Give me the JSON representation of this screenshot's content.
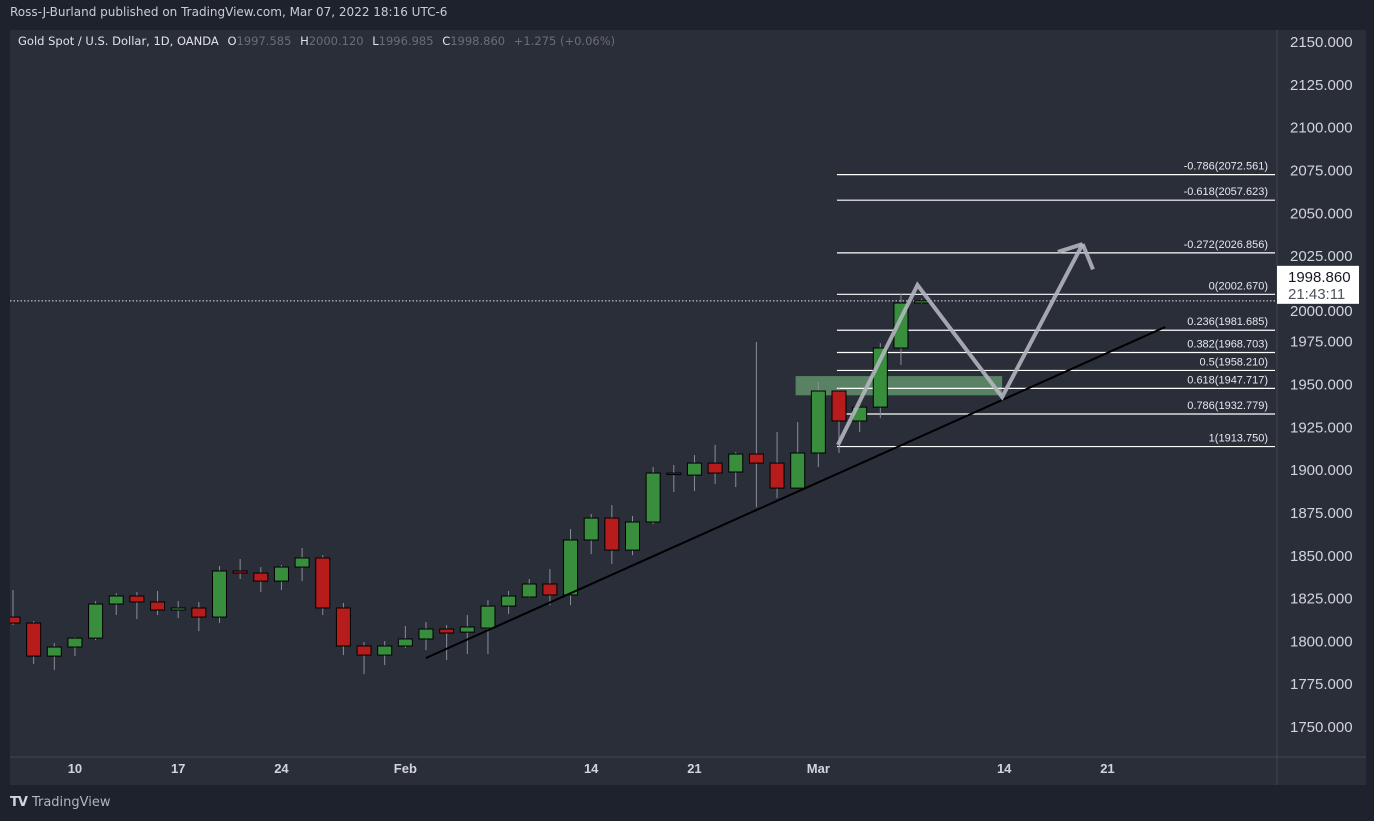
{
  "header": {
    "published": "Ross-J-Burland published on TradingView.com, Mar 07, 2022 18:16 UTC-6",
    "symbol": "Gold Spot / U.S. Dollar, 1D, OANDA",
    "o_label": "O",
    "o": "1997.585",
    "h_label": "H",
    "h": "2000.120",
    "l_label": "L",
    "l": "1996.985",
    "c_label": "C",
    "c": "1998.860",
    "change": "+1.275 (+0.06%)"
  },
  "last_price": {
    "price": "1998.860",
    "countdown": "21:43:11",
    "value": 1998.86
  },
  "footer": {
    "brand": "TradingView",
    "logo_text": "TV"
  },
  "colors": {
    "up": "#388e3c",
    "down": "#b71c1c",
    "bg": "#2a2e39",
    "text": "#d1d4dc"
  },
  "chart_data": {
    "type": "candlestick",
    "title": "Gold Spot / U.S. Dollar, 1D, OANDA",
    "ylim": [
      1735,
      2160
    ],
    "price_ticks": [
      "2150.000",
      "2125.000",
      "2100.000",
      "2075.000",
      "2050.000",
      "2025.000",
      "2000.000",
      "1975.000",
      "1950.000",
      "1925.000",
      "1900.000",
      "1875.000",
      "1850.000",
      "1825.000",
      "1800.000",
      "1775.000",
      "1750.000"
    ],
    "time_ticks": [
      {
        "label": "10",
        "index": 3
      },
      {
        "label": "17",
        "index": 8
      },
      {
        "label": "24",
        "index": 13
      },
      {
        "label": "Feb",
        "index": 19
      },
      {
        "label": "14",
        "index": 28
      },
      {
        "label": "21",
        "index": 33
      },
      {
        "label": "Mar",
        "index": 39
      },
      {
        "label": "14",
        "index": 48
      },
      {
        "label": "21",
        "index": 53
      }
    ],
    "candles": [
      [
        1814.2,
        1830.0,
        1809.5,
        1810.7
      ],
      [
        1810.7,
        1811.9,
        1786.8,
        1791.4
      ],
      [
        1791.4,
        1799.0,
        1783.3,
        1796.7
      ],
      [
        1796.7,
        1802.5,
        1791.4,
        1801.9
      ],
      [
        1801.9,
        1823.5,
        1800.8,
        1821.8
      ],
      [
        1821.8,
        1828.2,
        1815.4,
        1826.5
      ],
      [
        1826.5,
        1828.8,
        1813.0,
        1823.0
      ],
      [
        1823.0,
        1829.4,
        1815.4,
        1818.3
      ],
      [
        1818.3,
        1823.5,
        1813.6,
        1819.5
      ],
      [
        1819.5,
        1823.0,
        1806.0,
        1814.2
      ],
      [
        1814.2,
        1844.0,
        1810.7,
        1841.1
      ],
      [
        1841.1,
        1848.1,
        1836.4,
        1839.9
      ],
      [
        1839.9,
        1843.4,
        1828.8,
        1835.2
      ],
      [
        1835.2,
        1844.6,
        1830.0,
        1843.4
      ],
      [
        1843.4,
        1854.5,
        1835.2,
        1848.7
      ],
      [
        1848.7,
        1850.4,
        1815.4,
        1819.5
      ],
      [
        1819.5,
        1822.4,
        1792.0,
        1797.3
      ],
      [
        1797.3,
        1799.6,
        1780.9,
        1792.0
      ],
      [
        1792.0,
        1800.2,
        1786.2,
        1797.3
      ],
      [
        1797.3,
        1809.0,
        1796.1,
        1801.4
      ],
      [
        1801.4,
        1811.3,
        1794.9,
        1807.2
      ],
      [
        1807.2,
        1809.5,
        1789.1,
        1804.9
      ],
      [
        1805.4,
        1815.4,
        1792.6,
        1808.4
      ],
      [
        1807.8,
        1824.1,
        1792.6,
        1820.6
      ],
      [
        1820.6,
        1829.4,
        1816.0,
        1826.5
      ],
      [
        1825.9,
        1836.4,
        1825.3,
        1833.5
      ],
      [
        1833.5,
        1842.2,
        1821.2,
        1827.1
      ],
      [
        1827.1,
        1865.6,
        1821.2,
        1859.2
      ],
      [
        1859.2,
        1874.4,
        1851.0,
        1872.0
      ],
      [
        1872.0,
        1879.6,
        1845.2,
        1853.3
      ],
      [
        1853.3,
        1873.2,
        1850.4,
        1869.7
      ],
      [
        1869.7,
        1901.8,
        1868.5,
        1898.3
      ],
      [
        1898.3,
        1903.0,
        1887.2,
        1897.7
      ],
      [
        1897.1,
        1908.8,
        1887.8,
        1904.1
      ],
      [
        1904.1,
        1914.7,
        1891.9,
        1898.3
      ],
      [
        1898.9,
        1910.6,
        1890.1,
        1909.4
      ],
      [
        1909.4,
        1974.8,
        1878.4,
        1904.1
      ],
      [
        1904.1,
        1922.2,
        1883.7,
        1889.5
      ],
      [
        1889.5,
        1928.1,
        1889.5,
        1910.0
      ],
      [
        1910.0,
        1951.4,
        1901.8,
        1946.2
      ],
      [
        1946.2,
        1947.9,
        1910.0,
        1928.7
      ],
      [
        1928.7,
        1938.0,
        1922.2,
        1936.8
      ],
      [
        1936.8,
        1974.2,
        1930.4,
        1971.3
      ],
      [
        1971.3,
        2002.9,
        1961.4,
        1997.585
      ],
      [
        1997.585,
        2000.12,
        1996.985,
        1998.86
      ]
    ],
    "fib": {
      "start_index": 39.9,
      "levels": [
        {
          "label": "-0.786(2072.561)",
          "price": 2072.561
        },
        {
          "label": "-0.618(2057.623)",
          "price": 2057.623
        },
        {
          "label": "-0.272(2026.856)",
          "price": 2026.856
        },
        {
          "label": "0(2002.670)",
          "price": 2002.67
        },
        {
          "label": "0.236(1981.685)",
          "price": 1981.685
        },
        {
          "label": "0.382(1968.703)",
          "price": 1968.703
        },
        {
          "label": "0.5(1958.210)",
          "price": 1958.21
        },
        {
          "label": "0.618(1947.717)",
          "price": 1947.717
        },
        {
          "label": "0.786(1932.779)",
          "price": 1932.779
        },
        {
          "label": "1(1913.750)",
          "price": 1913.75
        }
      ]
    },
    "trendline": [
      [
        20.0,
        1790.3
      ],
      [
        55.8,
        1983.6
      ]
    ],
    "zone": {
      "from_index": 37.9,
      "to_index": 47.9,
      "top": 1954.9,
      "bottom": 1943.7
    },
    "projection_path": [
      [
        39.95,
        1914.7
      ],
      [
        43.8,
        2008.1
      ],
      [
        47.9,
        1942.7
      ],
      [
        51.8,
        2032.0
      ]
    ],
    "arrow_head": [
      [
        50.6,
        2027.4
      ],
      [
        52.3,
        2017.2
      ]
    ]
  }
}
